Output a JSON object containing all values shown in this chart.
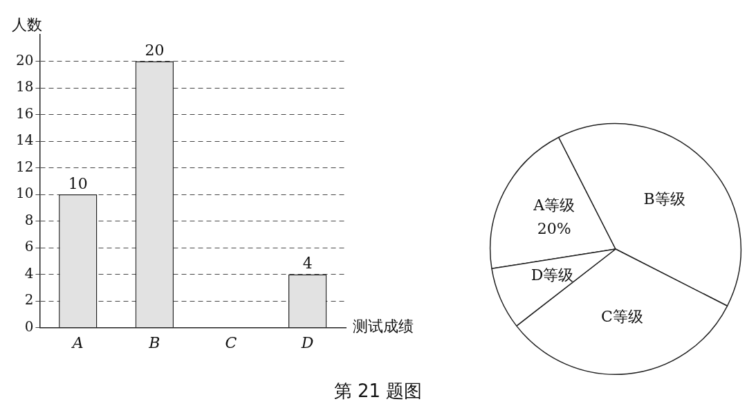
{
  "chart_data": [
    {
      "type": "bar",
      "ylabel": "人数",
      "xlabel": "测试成绩",
      "categories": [
        "A",
        "B",
        "C",
        "D"
      ],
      "values": [
        10,
        20,
        null,
        4
      ],
      "color": "#e2e2e2",
      "data_labels": true,
      "ylim": [
        0,
        22
      ],
      "yticks": [
        0,
        2,
        4,
        6,
        8,
        10,
        12,
        14,
        16,
        18,
        20
      ],
      "grid": "y",
      "legend": false,
      "annotations": [
        "第 21 题图"
      ]
    },
    {
      "type": "pie",
      "categories": [
        "A等级",
        "B等级",
        "C等级",
        "D等级"
      ],
      "values": [
        20,
        40,
        32,
        8
      ],
      "colors": [
        "#ffffff",
        "#ffffff",
        "#ffffff",
        "#ffffff"
      ],
      "value_labels": [
        "20%",
        null,
        null,
        null
      ],
      "legend": false
    }
  ]
}
